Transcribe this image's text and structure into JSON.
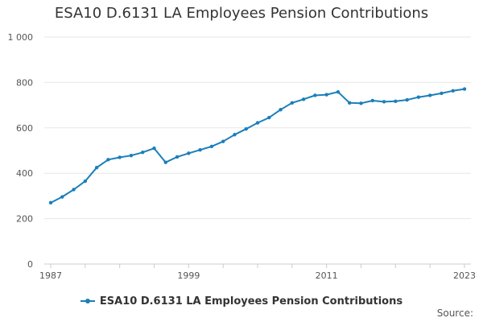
{
  "chart_data": {
    "type": "line",
    "title": "ESA10 D.6131 LA Employees Pension Contributions",
    "xlabel": "",
    "ylabel": "",
    "xlim": [
      1987,
      2023
    ],
    "ylim": [
      0,
      1000
    ],
    "y_ticks": [
      0,
      200,
      400,
      600,
      800,
      1000
    ],
    "y_tick_labels": [
      "0",
      "200",
      "400",
      "600",
      "800",
      "1 000"
    ],
    "x_tick_labels": [
      "1987",
      "1999",
      "2011",
      "2023"
    ],
    "x_tick_values": [
      1987,
      1999,
      2011,
      2023
    ],
    "grid": "horizontal",
    "legend_position": "bottom",
    "series": [
      {
        "name": "ESA10 D.6131 LA Employees Pension Contributions",
        "color": "#1a7fb9",
        "x": [
          1987,
          1988,
          1989,
          1990,
          1991,
          1992,
          1993,
          1994,
          1995,
          1996,
          1997,
          1998,
          1999,
          2000,
          2001,
          2002,
          2003,
          2004,
          2005,
          2006,
          2007,
          2008,
          2009,
          2010,
          2011,
          2012,
          2013,
          2014,
          2015,
          2016,
          2017,
          2018,
          2019,
          2020,
          2021,
          2022,
          2023
        ],
        "values": [
          270,
          296,
          328,
          365,
          425,
          460,
          470,
          478,
          492,
          510,
          448,
          472,
          488,
          503,
          518,
          540,
          570,
          595,
          622,
          645,
          680,
          710,
          726,
          743,
          746,
          758,
          710,
          708,
          720,
          715,
          717,
          723,
          735,
          743,
          752,
          763,
          771
        ]
      }
    ]
  },
  "footer": {
    "source_label": "Source:"
  }
}
